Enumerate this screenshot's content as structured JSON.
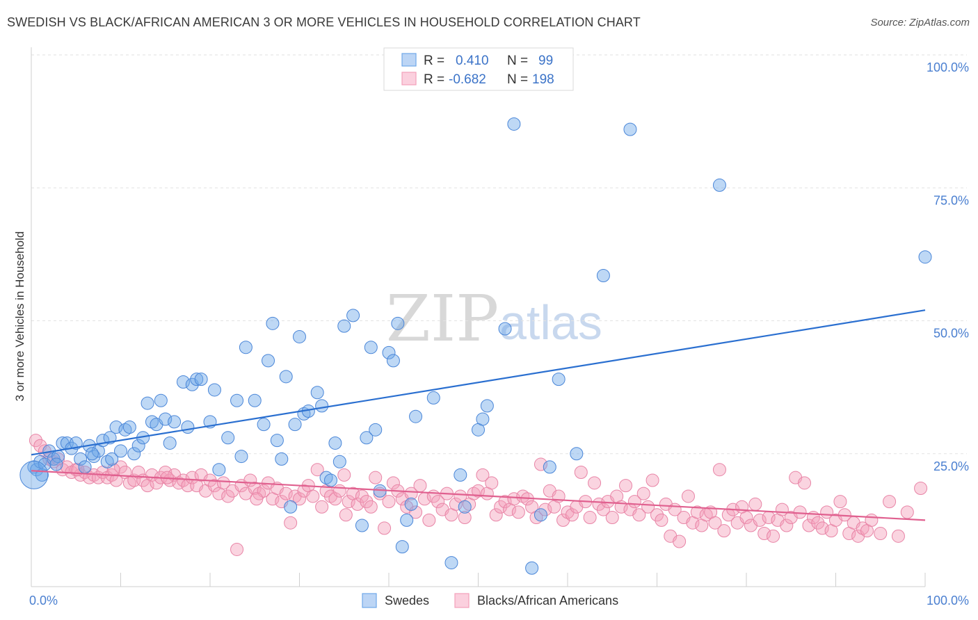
{
  "title": "SWEDISH VS BLACK/AFRICAN AMERICAN 3 OR MORE VEHICLES IN HOUSEHOLD CORRELATION CHART",
  "source": "Source: ZipAtlas.com",
  "watermark": {
    "zip": "ZIP",
    "atlas": "atlas"
  },
  "legend_top": [
    {
      "r_label": "R =",
      "r_value": "0.410",
      "n_label": "N =",
      "n_value": "99",
      "color": "#6fa8e8"
    },
    {
      "r_label": "R =",
      "r_value": "-0.682",
      "n_label": "N =",
      "n_value": "198",
      "color": "#f4a0bb"
    }
  ],
  "chart_data": {
    "type": "scatter",
    "ylabel": "3 or more Vehicles in Household",
    "xlim": [
      0,
      100
    ],
    "ylim": [
      0,
      100
    ],
    "x_tick_labels": {
      "left": "0.0%",
      "right": "100.0%"
    },
    "y_tick_labels": [
      {
        "value": 100,
        "label": "100.0%"
      },
      {
        "value": 75,
        "label": "75.0%"
      },
      {
        "value": 50,
        "label": "50.0%"
      },
      {
        "value": 25,
        "label": "25.0%"
      }
    ],
    "grid": true,
    "series": [
      {
        "name": "Swedes",
        "color": "#6fa8e8",
        "stroke": "#4a86d8",
        "trend": {
          "x": [
            0,
            100
          ],
          "y": [
            24.8,
            52.0
          ],
          "color": "#2a6fd0"
        },
        "points": [
          [
            0.3,
            22.5
          ],
          [
            0.6,
            22.0
          ],
          [
            1.0,
            23.5
          ],
          [
            1.5,
            23.0
          ],
          [
            2.0,
            25.5
          ],
          [
            2.5,
            24.0
          ],
          [
            3.0,
            24.5
          ],
          [
            3.5,
            27.0
          ],
          [
            4.0,
            27.0
          ],
          [
            4.5,
            26.0
          ],
          [
            5.0,
            27.0
          ],
          [
            5.5,
            24.0
          ],
          [
            6.0,
            22.5
          ],
          [
            6.5,
            26.5
          ],
          [
            7.0,
            24.5
          ],
          [
            7.5,
            25.5
          ],
          [
            8.0,
            27.5
          ],
          [
            8.5,
            23.5
          ],
          [
            9.0,
            24.0
          ],
          [
            9.5,
            30.0
          ],
          [
            10.0,
            25.5
          ],
          [
            10.5,
            29.5
          ],
          [
            11.0,
            30.0
          ],
          [
            11.5,
            25.0
          ],
          [
            12.0,
            26.5
          ],
          [
            12.5,
            28.0
          ],
          [
            13.0,
            34.5
          ],
          [
            13.5,
            31.0
          ],
          [
            14.0,
            30.5
          ],
          [
            14.5,
            35.0
          ],
          [
            15.0,
            31.5
          ],
          [
            15.5,
            27.0
          ],
          [
            16.0,
            31.0
          ],
          [
            17.0,
            38.5
          ],
          [
            17.5,
            30.0
          ],
          [
            18.0,
            38.0
          ],
          [
            18.5,
            39.0
          ],
          [
            19.0,
            39.0
          ],
          [
            20.0,
            31.0
          ],
          [
            20.5,
            37.0
          ],
          [
            21.0,
            22.0
          ],
          [
            22.0,
            28.0
          ],
          [
            23.0,
            35.0
          ],
          [
            23.5,
            24.5
          ],
          [
            24.0,
            45.0
          ],
          [
            25.0,
            35.0
          ],
          [
            26.0,
            30.5
          ],
          [
            26.5,
            42.5
          ],
          [
            27.0,
            49.5
          ],
          [
            27.5,
            27.5
          ],
          [
            28.0,
            24.0
          ],
          [
            28.5,
            39.5
          ],
          [
            29.0,
            15.0
          ],
          [
            29.5,
            30.5
          ],
          [
            30.0,
            47.0
          ],
          [
            30.5,
            32.5
          ],
          [
            31.0,
            33.0
          ],
          [
            32.0,
            36.5
          ],
          [
            32.5,
            34.0
          ],
          [
            33.0,
            20.5
          ],
          [
            34.0,
            27.0
          ],
          [
            34.5,
            23.5
          ],
          [
            35.0,
            49.0
          ],
          [
            36.0,
            51.0
          ],
          [
            37.0,
            11.5
          ],
          [
            37.5,
            28.0
          ],
          [
            38.0,
            45.0
          ],
          [
            38.5,
            29.5
          ],
          [
            39.0,
            18.0
          ],
          [
            40.0,
            44.0
          ],
          [
            40.5,
            42.5
          ],
          [
            41.0,
            49.5
          ],
          [
            41.5,
            7.5
          ],
          [
            42.0,
            12.5
          ],
          [
            42.5,
            15.5
          ],
          [
            43.0,
            32.0
          ],
          [
            45.0,
            35.5
          ],
          [
            47.0,
            4.5
          ],
          [
            48.0,
            21.0
          ],
          [
            50.0,
            29.5
          ],
          [
            50.5,
            31.5
          ],
          [
            51.0,
            34.0
          ],
          [
            53.0,
            48.5
          ],
          [
            54.0,
            87.0
          ],
          [
            57.0,
            13.5
          ],
          [
            58.0,
            22.5
          ],
          [
            59.0,
            39.0
          ],
          [
            61.0,
            25.0
          ],
          [
            64.0,
            58.5
          ],
          [
            67.0,
            86.0
          ],
          [
            77.0,
            75.5
          ],
          [
            56.0,
            3.5
          ],
          [
            48.5,
            15.0
          ],
          [
            33.5,
            20.0
          ],
          [
            1.2,
            21.0
          ],
          [
            2.8,
            23.0
          ],
          [
            6.8,
            25.0
          ],
          [
            8.8,
            28.0
          ],
          [
            100.0,
            62.0
          ]
        ],
        "big_point": [
          0.3,
          21.0
        ]
      },
      {
        "name": "Blacks/African Americans",
        "color": "#f4a0bb",
        "stroke": "#e884a6",
        "trend": {
          "x": [
            0,
            100
          ],
          "y": [
            21.8,
            12.5
          ],
          "color": "#e0608f"
        },
        "points": [
          [
            0.5,
            27.5
          ],
          [
            1.0,
            26.5
          ],
          [
            1.5,
            25.5
          ],
          [
            2.0,
            24.0
          ],
          [
            2.5,
            23.5
          ],
          [
            3.0,
            24.0
          ],
          [
            3.5,
            22.0
          ],
          [
            4.0,
            22.5
          ],
          [
            4.5,
            21.5
          ],
          [
            5.0,
            22.0
          ],
          [
            5.5,
            21.0
          ],
          [
            6.0,
            21.5
          ],
          [
            6.5,
            20.5
          ],
          [
            7.0,
            21.0
          ],
          [
            7.5,
            20.5
          ],
          [
            8.0,
            21.5
          ],
          [
            8.5,
            20.5
          ],
          [
            9.0,
            21.0
          ],
          [
            9.5,
            20.0
          ],
          [
            10.0,
            22.5
          ],
          [
            10.5,
            21.5
          ],
          [
            11.0,
            19.5
          ],
          [
            11.5,
            20.0
          ],
          [
            12.0,
            21.5
          ],
          [
            12.5,
            20.0
          ],
          [
            13.0,
            19.0
          ],
          [
            13.5,
            21.0
          ],
          [
            14.0,
            19.5
          ],
          [
            14.5,
            20.5
          ],
          [
            15.0,
            21.5
          ],
          [
            15.5,
            20.0
          ],
          [
            16.0,
            21.0
          ],
          [
            16.5,
            19.5
          ],
          [
            17.0,
            20.0
          ],
          [
            17.5,
            19.0
          ],
          [
            18.0,
            20.5
          ],
          [
            18.5,
            19.0
          ],
          [
            19.0,
            21.0
          ],
          [
            19.5,
            18.0
          ],
          [
            20.0,
            20.0
          ],
          [
            20.5,
            19.0
          ],
          [
            21.0,
            17.5
          ],
          [
            21.5,
            19.5
          ],
          [
            22.0,
            17.0
          ],
          [
            22.5,
            18.0
          ],
          [
            23.0,
            7.0
          ],
          [
            23.5,
            19.0
          ],
          [
            24.0,
            17.5
          ],
          [
            24.5,
            20.0
          ],
          [
            25.0,
            18.5
          ],
          [
            25.5,
            17.5
          ],
          [
            26.0,
            18.0
          ],
          [
            26.5,
            19.5
          ],
          [
            27.0,
            16.5
          ],
          [
            27.5,
            18.5
          ],
          [
            28.0,
            16.0
          ],
          [
            28.5,
            17.5
          ],
          [
            29.0,
            12.0
          ],
          [
            29.5,
            17.0
          ],
          [
            30.0,
            16.5
          ],
          [
            30.5,
            18.0
          ],
          [
            31.0,
            19.0
          ],
          [
            31.5,
            17.0
          ],
          [
            32.0,
            22.0
          ],
          [
            32.5,
            15.0
          ],
          [
            33.0,
            18.0
          ],
          [
            33.5,
            17.0
          ],
          [
            34.0,
            16.5
          ],
          [
            34.5,
            18.0
          ],
          [
            35.0,
            21.0
          ],
          [
            35.5,
            16.0
          ],
          [
            36.0,
            17.5
          ],
          [
            36.5,
            15.5
          ],
          [
            37.0,
            17.0
          ],
          [
            37.5,
            16.0
          ],
          [
            38.0,
            15.0
          ],
          [
            38.5,
            20.5
          ],
          [
            39.0,
            17.5
          ],
          [
            39.5,
            11.0
          ],
          [
            40.0,
            16.0
          ],
          [
            40.5,
            19.5
          ],
          [
            41.0,
            18.0
          ],
          [
            41.5,
            16.5
          ],
          [
            42.0,
            15.0
          ],
          [
            42.5,
            17.5
          ],
          [
            43.0,
            14.0
          ],
          [
            43.5,
            19.0
          ],
          [
            44.0,
            16.5
          ],
          [
            44.5,
            12.5
          ],
          [
            45.0,
            17.0
          ],
          [
            45.5,
            16.0
          ],
          [
            46.0,
            14.5
          ],
          [
            46.5,
            17.5
          ],
          [
            47.0,
            13.5
          ],
          [
            47.5,
            15.5
          ],
          [
            48.0,
            17.0
          ],
          [
            48.5,
            13.0
          ],
          [
            49.0,
            15.5
          ],
          [
            49.5,
            17.5
          ],
          [
            50.0,
            18.0
          ],
          [
            50.5,
            21.0
          ],
          [
            51.0,
            17.5
          ],
          [
            51.5,
            19.5
          ],
          [
            52.0,
            13.5
          ],
          [
            52.5,
            15.0
          ],
          [
            53.0,
            16.0
          ],
          [
            53.5,
            14.5
          ],
          [
            54.0,
            16.5
          ],
          [
            54.5,
            14.0
          ],
          [
            55.0,
            17.0
          ],
          [
            55.5,
            16.5
          ],
          [
            56.0,
            15.0
          ],
          [
            56.5,
            13.0
          ],
          [
            57.0,
            23.0
          ],
          [
            57.5,
            14.5
          ],
          [
            58.0,
            18.0
          ],
          [
            58.5,
            15.0
          ],
          [
            59.0,
            17.0
          ],
          [
            59.5,
            12.5
          ],
          [
            60.0,
            14.0
          ],
          [
            60.5,
            13.5
          ],
          [
            61.0,
            15.0
          ],
          [
            61.5,
            21.5
          ],
          [
            62.0,
            16.0
          ],
          [
            62.5,
            13.0
          ],
          [
            63.0,
            19.5
          ],
          [
            63.5,
            15.5
          ],
          [
            64.0,
            14.5
          ],
          [
            64.5,
            16.0
          ],
          [
            65.0,
            13.0
          ],
          [
            65.5,
            17.0
          ],
          [
            66.0,
            15.0
          ],
          [
            66.5,
            19.0
          ],
          [
            67.0,
            14.5
          ],
          [
            67.5,
            16.0
          ],
          [
            68.0,
            13.5
          ],
          [
            68.5,
            17.5
          ],
          [
            69.0,
            15.0
          ],
          [
            69.5,
            20.0
          ],
          [
            70.0,
            13.5
          ],
          [
            70.5,
            12.5
          ],
          [
            71.0,
            15.5
          ],
          [
            71.5,
            9.5
          ],
          [
            72.0,
            14.5
          ],
          [
            72.5,
            8.5
          ],
          [
            73.0,
            13.0
          ],
          [
            73.5,
            17.0
          ],
          [
            74.0,
            12.0
          ],
          [
            74.5,
            14.0
          ],
          [
            75.0,
            11.5
          ],
          [
            75.5,
            13.5
          ],
          [
            76.0,
            14.0
          ],
          [
            76.5,
            12.0
          ],
          [
            77.0,
            22.0
          ],
          [
            77.5,
            10.5
          ],
          [
            78.0,
            13.5
          ],
          [
            78.5,
            14.5
          ],
          [
            79.0,
            12.0
          ],
          [
            79.5,
            15.0
          ],
          [
            80.0,
            13.0
          ],
          [
            80.5,
            11.5
          ],
          [
            81.0,
            15.5
          ],
          [
            81.5,
            12.5
          ],
          [
            82.0,
            10.0
          ],
          [
            82.5,
            13.0
          ],
          [
            83.0,
            9.5
          ],
          [
            83.5,
            12.5
          ],
          [
            84.0,
            14.5
          ],
          [
            84.5,
            11.5
          ],
          [
            85.0,
            13.0
          ],
          [
            85.5,
            20.5
          ],
          [
            86.0,
            14.0
          ],
          [
            86.5,
            19.5
          ],
          [
            87.0,
            11.5
          ],
          [
            87.5,
            13.0
          ],
          [
            88.0,
            12.0
          ],
          [
            88.5,
            11.0
          ],
          [
            89.0,
            14.0
          ],
          [
            89.5,
            10.5
          ],
          [
            90.0,
            12.5
          ],
          [
            90.5,
            16.0
          ],
          [
            91.0,
            13.5
          ],
          [
            91.5,
            10.0
          ],
          [
            92.0,
            12.0
          ],
          [
            92.5,
            9.5
          ],
          [
            93.0,
            11.0
          ],
          [
            93.5,
            10.5
          ],
          [
            94.0,
            12.5
          ],
          [
            95.0,
            10.0
          ],
          [
            96.0,
            16.0
          ],
          [
            97.0,
            9.5
          ],
          [
            98.0,
            14.0
          ],
          [
            99.5,
            18.5
          ],
          [
            5.2,
            22.0
          ],
          [
            9.2,
            22.0
          ],
          [
            15.2,
            20.5
          ],
          [
            25.2,
            16.5
          ],
          [
            35.2,
            13.5
          ]
        ]
      }
    ]
  },
  "legend_bottom": [
    {
      "label": "Swedes",
      "color": "#6fa8e8"
    },
    {
      "label": "Blacks/African Americans",
      "color": "#f4a0bb"
    }
  ]
}
